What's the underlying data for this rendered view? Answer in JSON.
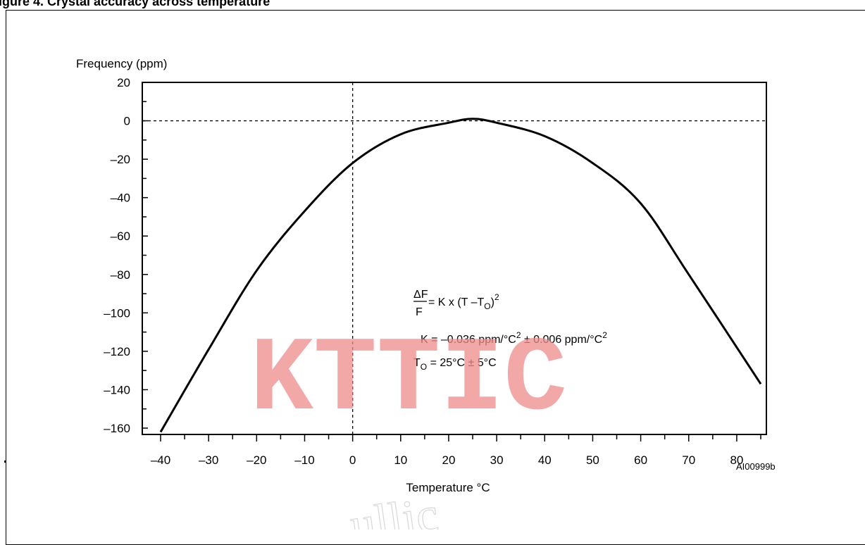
{
  "caption": "igure 4. Crystal accuracy across temperature",
  "colors": {
    "curve": "#000000",
    "axes": "#000000",
    "watermark": "#f08c8c"
  },
  "chart_data": {
    "type": "line",
    "title": "",
    "xlabel": "Temperature °C",
    "ylabel": "Frequency (ppm)",
    "xlim": [
      -40,
      85
    ],
    "ylim": [
      -162,
      20
    ],
    "xticks": [
      -40,
      -30,
      -20,
      -10,
      0,
      10,
      20,
      30,
      40,
      50,
      60,
      70,
      80
    ],
    "xtick_labels": [
      "–40",
      "–30",
      "–20",
      "–10",
      "0",
      "10",
      "20",
      "30",
      "40",
      "50",
      "60",
      "70",
      "80"
    ],
    "yticks": [
      20,
      0,
      -20,
      -40,
      -60,
      -80,
      -100,
      -120,
      -140,
      -160
    ],
    "ytick_labels": [
      "20",
      "0",
      "–20",
      "–40",
      "–60",
      "–80",
      "–100",
      "–120",
      "–140",
      "–160"
    ],
    "grid": false,
    "reference_lines": {
      "x": 0,
      "y": 0,
      "style": "dashed"
    },
    "series": [
      {
        "x": [
          -40,
          -30,
          -20,
          -10,
          0,
          10,
          20,
          25,
          30,
          40,
          50,
          60,
          70,
          85
        ],
        "values": [
          -162,
          -119,
          -78,
          -47,
          -22,
          -7,
          -1,
          1,
          -1,
          -8,
          -22,
          -43,
          -80,
          -137
        ]
      }
    ],
    "annotations": {
      "formula_numerator": "ΔF",
      "formula_denominator": "F",
      "formula_rest": "= K x (T –T",
      "formula_sub": "O",
      "formula_close": ")",
      "formula_sup": "2",
      "k_line_a": "K  = –0.036 ppm/°C",
      "k_line_sup1": "2",
      "k_line_b": " ± 0.006 ppm/°C",
      "k_line_sup2": "2",
      "t0_symbol": "T",
      "t0_sub": "O",
      "t0_rest": " = 25°C ± 5°C"
    },
    "reference_code": "AI00999b"
  },
  "watermark": "KTTIC",
  "faint_watermark": "ullic"
}
